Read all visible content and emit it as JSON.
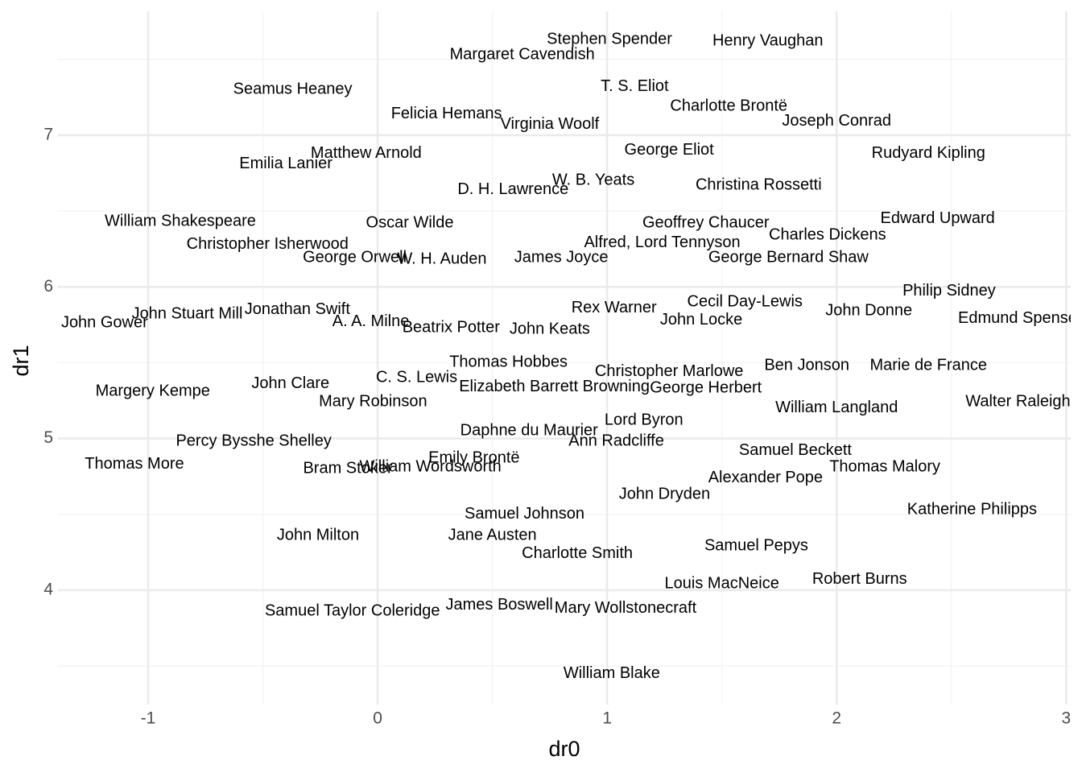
{
  "chart_data": {
    "type": "text_scatter",
    "x_label": "dr0",
    "y_label": "dr1",
    "xlim": [
      -1.393,
      3.02
    ],
    "ylim": [
      3.246,
      7.817
    ],
    "xticks": [
      -1,
      0,
      1,
      2,
      3
    ],
    "yticks": [
      4,
      5,
      6,
      7
    ],
    "grid": true,
    "minor_grid": true,
    "color": "#000000",
    "series": [
      {
        "labels": [
          "Stephen Spender",
          "Henry Vaughan",
          "Margaret Cavendish",
          "Seamus Heaney",
          "T. S. Eliot",
          "Charlotte Brontë",
          "Felicia Hemans",
          "Virginia Woolf",
          "Joseph Conrad",
          "Matthew Arnold",
          "George Eliot",
          "Rudyard Kipling",
          "Emilia Lanier",
          "W. B. Yeats",
          "D. H. Lawrence",
          "Christina Rossetti",
          "William Shakespeare",
          "Oscar Wilde",
          "Geoffrey Chaucer",
          "Edward Upward",
          "Charles Dickens",
          "Alfred, Lord Tennyson",
          "Christopher Isherwood",
          "George Orwell",
          "W. H. Auden",
          "James Joyce",
          "George Bernard Shaw",
          "Philip Sidney",
          "Cecil Day-Lewis",
          "Rex Warner",
          "John Stuart Mill",
          "Jonathan Swift",
          "John Donne",
          "John Gower",
          "A. A. Milne",
          "John Locke",
          "Edmund Spenser",
          "Beatrix Potter",
          "John Keats",
          "Thomas Hobbes",
          "Christopher Marlowe",
          "Ben Jonson",
          "Marie de France",
          "C. S. Lewis",
          "John Clare",
          "Elizabeth Barrett Browning",
          "George Herbert",
          "Margery Kempe",
          "Mary Robinson",
          "Walter Raleigh",
          "William Langland",
          "Lord Byron",
          "Daphne du Maurier",
          "Percy Bysshe Shelley",
          "Ann Radcliffe",
          "Samuel Beckett",
          "Emily Brontë",
          "Thomas More",
          "William Wordsworth",
          "Thomas Malory",
          "Bram Stoker",
          "Alexander Pope",
          "John Dryden",
          "Katherine Philipps",
          "Samuel Johnson",
          "John Milton",
          "Jane Austen",
          "Samuel Pepys",
          "Charlotte Smith",
          "Robert Burns",
          "Louis MacNeice",
          "James Boswell",
          "Mary Wollstonecraft",
          "Samuel Taylor Coleridge",
          "William Blake"
        ],
        "x": [
          1.01,
          1.7,
          0.63,
          -0.37,
          1.12,
          1.53,
          0.3,
          0.75,
          2.0,
          -0.05,
          1.27,
          2.4,
          -0.4,
          0.94,
          0.59,
          1.66,
          -0.86,
          0.14,
          1.43,
          2.44,
          1.96,
          1.24,
          -0.48,
          -0.1,
          0.28,
          0.8,
          1.79,
          2.49,
          1.6,
          1.03,
          -0.83,
          -0.35,
          2.14,
          -1.19,
          -0.03,
          1.41,
          2.8,
          0.32,
          0.75,
          0.57,
          1.27,
          1.87,
          2.4,
          0.17,
          -0.38,
          0.77,
          1.43,
          -0.98,
          -0.02,
          2.79,
          2.0,
          1.16,
          0.66,
          -0.54,
          1.04,
          1.82,
          0.42,
          -1.06,
          0.23,
          2.21,
          -0.13,
          1.69,
          1.25,
          2.59,
          0.64,
          -0.26,
          0.5,
          1.65,
          0.87,
          2.1,
          1.5,
          0.53,
          1.08,
          -0.11,
          1.02
        ],
        "values": [
          7.63,
          7.62,
          7.53,
          7.3,
          7.32,
          7.19,
          7.14,
          7.07,
          7.09,
          6.88,
          6.9,
          6.88,
          6.81,
          6.7,
          6.64,
          6.67,
          6.43,
          6.42,
          6.42,
          6.45,
          6.34,
          6.29,
          6.28,
          6.19,
          6.18,
          6.19,
          6.19,
          5.97,
          5.9,
          5.86,
          5.82,
          5.85,
          5.84,
          5.76,
          5.77,
          5.78,
          5.79,
          5.73,
          5.72,
          5.5,
          5.44,
          5.48,
          5.48,
          5.4,
          5.36,
          5.34,
          5.33,
          5.31,
          5.24,
          5.24,
          5.2,
          5.12,
          5.05,
          4.98,
          4.98,
          4.92,
          4.87,
          4.83,
          4.81,
          4.81,
          4.8,
          4.74,
          4.63,
          4.53,
          4.5,
          4.36,
          4.36,
          4.29,
          4.24,
          4.07,
          4.04,
          3.9,
          3.88,
          3.86,
          3.45
        ]
      }
    ]
  }
}
